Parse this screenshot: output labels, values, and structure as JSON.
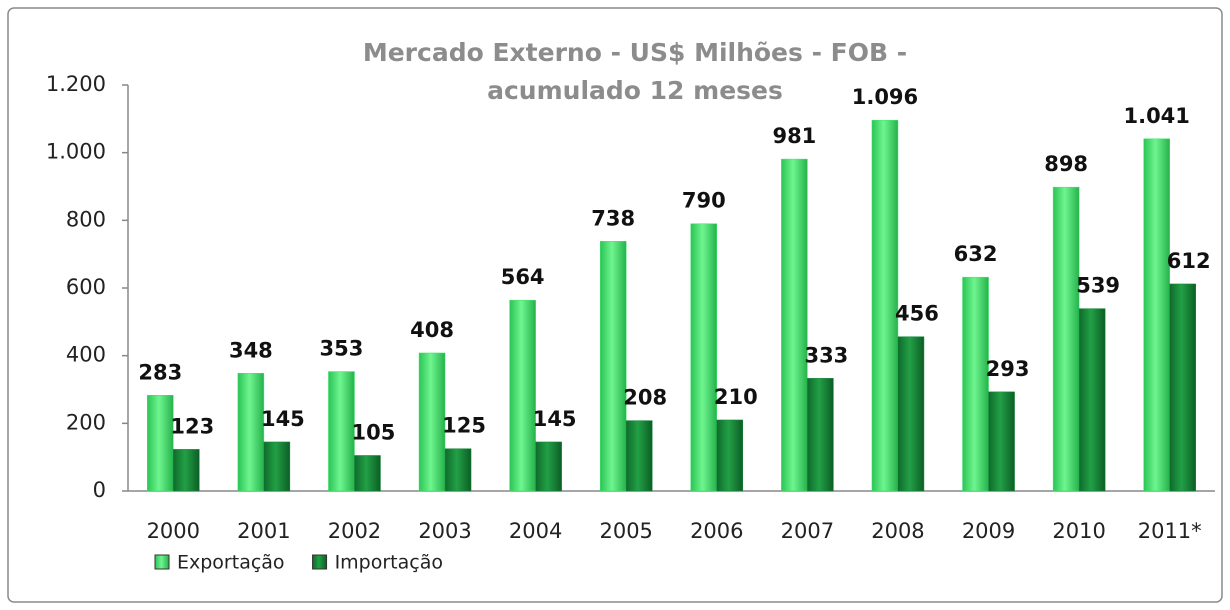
{
  "chart_data": {
    "type": "bar",
    "title": "Mercado Externo - US$ Milhões - FOB - acumulado 12 meses",
    "categories": [
      "2000",
      "2001",
      "2002",
      "2003",
      "2004",
      "2005",
      "2006",
      "2007",
      "2008",
      "2009",
      "2010",
      "2011*"
    ],
    "series": [
      {
        "name": "Exportação",
        "color": "#3fe36a",
        "values": [
          283,
          348,
          353,
          408,
          564,
          738,
          790,
          981,
          1096,
          632,
          898,
          1041
        ],
        "value_labels": [
          "283",
          "348",
          "353",
          "408",
          "564",
          "738",
          "790",
          "981",
          "1.096",
          "632",
          "898",
          "1.041"
        ]
      },
      {
        "name": "Importação",
        "color": "#17873a",
        "values": [
          123,
          145,
          105,
          125,
          145,
          208,
          210,
          333,
          456,
          293,
          539,
          612
        ],
        "value_labels": [
          "123",
          "145",
          "105",
          "125",
          "145",
          "208",
          "210",
          "333",
          "456",
          "293",
          "539",
          "612"
        ]
      }
    ],
    "ylim": [
      0,
      1200
    ],
    "yticks": [
      0,
      200,
      400,
      600,
      800,
      {
        "value": 1000,
        "label": "1.000"
      },
      {
        "value": 1200,
        "label": "1.200"
      }
    ],
    "grid": false,
    "legend": "bottom-left"
  }
}
